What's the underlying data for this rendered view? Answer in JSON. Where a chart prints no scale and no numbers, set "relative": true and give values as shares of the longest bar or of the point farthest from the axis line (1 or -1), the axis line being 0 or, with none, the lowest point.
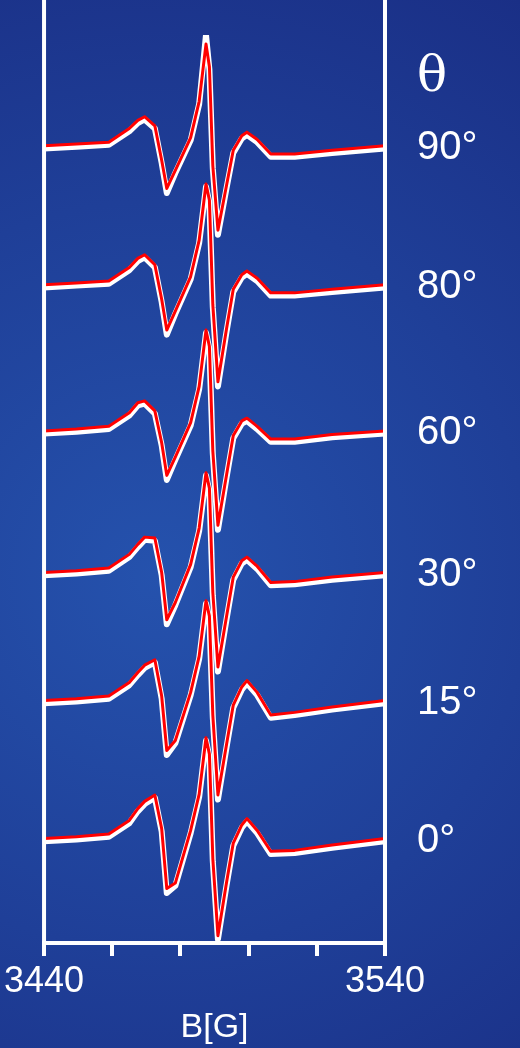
{
  "chart_data": {
    "type": "line",
    "relative": true,
    "xlabel": "B[G]",
    "legend_title": "θ",
    "marker": "none",
    "line_style": "solid",
    "grid": false,
    "xlim": [
      3440,
      3540
    ],
    "xticks": [
      3440,
      {
        "value": 3460,
        "label": null
      },
      {
        "value": 3480,
        "label": null
      },
      {
        "value": 3500,
        "label": null
      },
      {
        "value": 3520,
        "label": null
      },
      3540
    ],
    "x": [
      3440,
      3449.5,
      3459,
      3465,
      3467.5,
      3469.5,
      3472.5,
      3474.5,
      3476,
      3478.5,
      3483,
      3485.5,
      3487.5,
      3488.5,
      3489.5,
      3491,
      3493.5,
      3495.5,
      3498,
      3499.5,
      3502.5,
      3506.5,
      3513.5,
      3524.5,
      3540
    ],
    "series": [
      {
        "name": "90°",
        "color": "#ff0000",
        "values": [
          0.878,
          0.88,
          0.882,
          0.897,
          0.906,
          0.91,
          0.9,
          0.862,
          0.831,
          0.851,
          0.887,
          0.927,
          0.99,
          0.965,
          0.856,
          0.785,
          0.834,
          0.873,
          0.889,
          0.893,
          0.885,
          0.869,
          0.869,
          0.873,
          0.878
        ]
      },
      {
        "name": "80°",
        "color": "#ff0000",
        "values": [
          0.725,
          0.727,
          0.729,
          0.744,
          0.754,
          0.758,
          0.747,
          0.709,
          0.675,
          0.696,
          0.734,
          0.774,
          0.836,
          0.818,
          0.703,
          0.618,
          0.676,
          0.72,
          0.736,
          0.74,
          0.732,
          0.716,
          0.716,
          0.72,
          0.725
        ]
      },
      {
        "name": "60°",
        "color": "#ff0000",
        "values": [
          0.564,
          0.566,
          0.569,
          0.584,
          0.595,
          0.597,
          0.586,
          0.551,
          0.515,
          0.535,
          0.573,
          0.613,
          0.675,
          0.657,
          0.542,
          0.46,
          0.515,
          0.559,
          0.575,
          0.578,
          0.569,
          0.555,
          0.555,
          0.56,
          0.564
        ]
      },
      {
        "name": "30°",
        "color": "#ff0000",
        "values": [
          0.408,
          0.41,
          0.413,
          0.428,
          0.439,
          0.447,
          0.446,
          0.408,
          0.356,
          0.375,
          0.417,
          0.457,
          0.518,
          0.501,
          0.386,
          0.304,
          0.359,
          0.403,
          0.421,
          0.425,
          0.415,
          0.397,
          0.398,
          0.403,
          0.408
        ]
      },
      {
        "name": "15°",
        "color": "#ff0000",
        "values": [
          0.267,
          0.269,
          0.272,
          0.287,
          0.298,
          0.306,
          0.312,
          0.272,
          0.212,
          0.223,
          0.276,
          0.316,
          0.377,
          0.36,
          0.251,
          0.163,
          0.218,
          0.262,
          0.282,
          0.289,
          0.276,
          0.251,
          0.254,
          0.26,
          0.267
        ]
      },
      {
        "name": "0°",
        "color": "#ff0000",
        "values": [
          0.115,
          0.117,
          0.12,
          0.135,
          0.148,
          0.156,
          0.163,
          0.126,
          0.06,
          0.066,
          0.124,
          0.164,
          0.226,
          0.208,
          0.093,
          0.008,
          0.066,
          0.11,
          0.13,
          0.137,
          0.124,
          0.101,
          0.102,
          0.108,
          0.115
        ]
      },
      {
        "color": "#ffffff",
        "values": [
          0.875,
          0.877,
          0.879,
          0.894,
          0.903,
          0.907,
          0.897,
          0.859,
          0.826,
          0.848,
          0.884,
          0.924,
          1,
          0.962,
          0.853,
          0.78,
          0.831,
          0.87,
          0.886,
          0.89,
          0.882,
          0.866,
          0.866,
          0.87,
          0.875
        ]
      },
      {
        "color": "#ffffff",
        "values": [
          0.722,
          0.724,
          0.726,
          0.741,
          0.751,
          0.755,
          0.744,
          0.706,
          0.67,
          0.693,
          0.731,
          0.771,
          0.833,
          0.815,
          0.7,
          0.613,
          0.673,
          0.717,
          0.733,
          0.737,
          0.729,
          0.713,
          0.713,
          0.717,
          0.722
        ]
      },
      {
        "color": "#ffffff",
        "values": [
          0.561,
          0.563,
          0.566,
          0.581,
          0.592,
          0.594,
          0.583,
          0.548,
          0.51,
          0.532,
          0.57,
          0.61,
          0.672,
          0.654,
          0.539,
          0.455,
          0.512,
          0.556,
          0.572,
          0.575,
          0.566,
          0.552,
          0.552,
          0.557,
          0.561
        ]
      },
      {
        "color": "#ffffff",
        "values": [
          0.405,
          0.407,
          0.41,
          0.425,
          0.436,
          0.444,
          0.443,
          0.405,
          0.351,
          0.372,
          0.414,
          0.454,
          0.515,
          0.498,
          0.383,
          0.299,
          0.356,
          0.4,
          0.418,
          0.422,
          0.412,
          0.394,
          0.395,
          0.4,
          0.405
        ]
      },
      {
        "color": "#ffffff",
        "values": [
          0.264,
          0.266,
          0.269,
          0.284,
          0.295,
          0.303,
          0.309,
          0.269,
          0.207,
          0.22,
          0.273,
          0.313,
          0.374,
          0.357,
          0.248,
          0.158,
          0.215,
          0.259,
          0.279,
          0.286,
          0.273,
          0.248,
          0.251,
          0.257,
          0.264
        ]
      },
      {
        "color": "#ffffff",
        "values": [
          0.112,
          0.114,
          0.117,
          0.132,
          0.145,
          0.153,
          0.16,
          0.123,
          0.055,
          0.063,
          0.121,
          0.161,
          0.223,
          0.205,
          0.09,
          0.004,
          0.063,
          0.107,
          0.127,
          0.134,
          0.121,
          0.098,
          0.099,
          0.105,
          0.112
        ]
      }
    ]
  }
}
